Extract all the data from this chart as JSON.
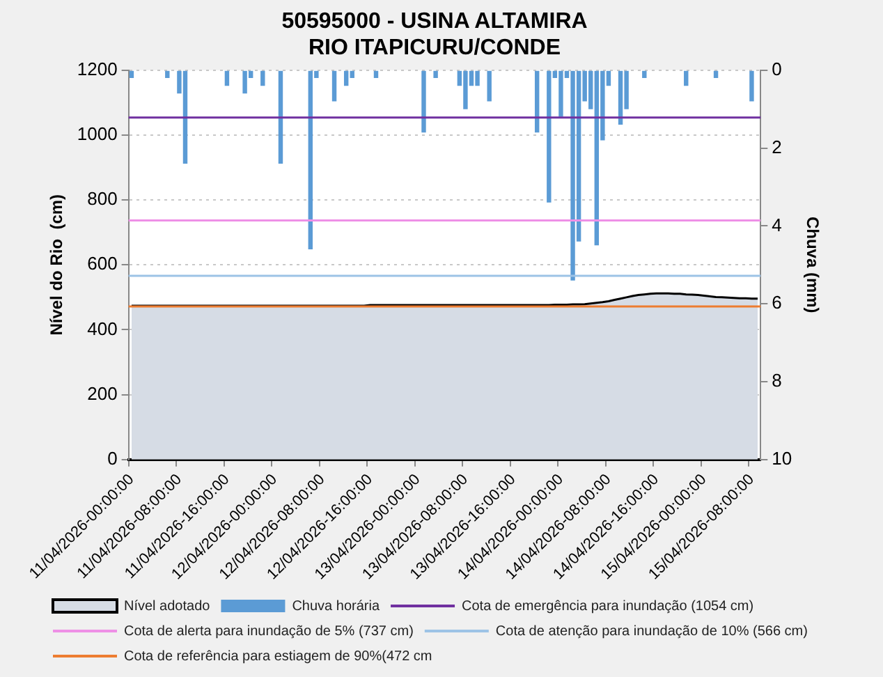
{
  "chart_data": {
    "type": "bar",
    "title": "50595000 - USINA ALTAMIRA",
    "subtitle": "RIO ITAPICURU/CONDE",
    "ylabel": "Nível do Rio  (cm)",
    "y2label": "Chuva (mm)",
    "categories": [
      "11/04/2026-00:00:00",
      null,
      null,
      null,
      null,
      null,
      null,
      null,
      "11/04/2026-08:00:00",
      null,
      null,
      null,
      null,
      null,
      null,
      null,
      "11/04/2026-16:00:00",
      null,
      null,
      null,
      null,
      null,
      null,
      null,
      "12/04/2026-00:00:00",
      null,
      null,
      null,
      null,
      null,
      null,
      null,
      "12/04/2026-08:00:00",
      null,
      null,
      null,
      null,
      null,
      null,
      null,
      "12/04/2026-16:00:00",
      null,
      null,
      null,
      null,
      null,
      null,
      null,
      "13/04/2026-00:00:00",
      null,
      null,
      null,
      null,
      null,
      null,
      null,
      "13/04/2026-08:00:00",
      null,
      null,
      null,
      null,
      null,
      null,
      null,
      "13/04/2026-16:00:00",
      null,
      null,
      null,
      null,
      null,
      null,
      null,
      "14/04/2026-00:00:00",
      null,
      null,
      null,
      null,
      null,
      null,
      null,
      "14/04/2026-08:00:00",
      null,
      null,
      null,
      null,
      null,
      null,
      null,
      "14/04/2026-16:00:00",
      null,
      null,
      null,
      null,
      null,
      null,
      null,
      "15/04/2026-00:00:00",
      null,
      null,
      null,
      null,
      null,
      null,
      null,
      "15/04/2026-08:00:00",
      null
    ],
    "series": [
      {
        "name": "Nível adotado",
        "type": "area",
        "color": "#d6dce5",
        "values": [
          474,
          474,
          474,
          474,
          474,
          474,
          474,
          474,
          474,
          474,
          474,
          474,
          474,
          474,
          474,
          474,
          474,
          474,
          474,
          474,
          474,
          474,
          474,
          474,
          474,
          474,
          474,
          474,
          474,
          474,
          474,
          474,
          474,
          474,
          474,
          474,
          474,
          474,
          474,
          474,
          476,
          476,
          476,
          476,
          476,
          476,
          476,
          476,
          476,
          476,
          476,
          476,
          476,
          476,
          476,
          476,
          476,
          476,
          476,
          476,
          476,
          476,
          476,
          476,
          476,
          476,
          476,
          476,
          476,
          476,
          476,
          477,
          477,
          477,
          478,
          478,
          479,
          481,
          483,
          485,
          488,
          492,
          496,
          500,
          504,
          507,
          509,
          511,
          512,
          512,
          512,
          511,
          511,
          509,
          508,
          507,
          505,
          503,
          501,
          500,
          499,
          498,
          497,
          497,
          496,
          496
        ]
      },
      {
        "name": "Chuva horária",
        "axis": "y2",
        "color": "#5b9bd5",
        "values": [
          0.2,
          0,
          0,
          0,
          0,
          0,
          0.2,
          0,
          0.6,
          2.4,
          0,
          0,
          0,
          0,
          0,
          0,
          0.4,
          0,
          0,
          0.6,
          0.2,
          0,
          0.4,
          0,
          0,
          2.4,
          0,
          0,
          0,
          0,
          4.6,
          0.2,
          0,
          0,
          0.8,
          0,
          0.4,
          0.2,
          0,
          0,
          0,
          0.2,
          0,
          0,
          0,
          0,
          0,
          0,
          0,
          1.6,
          0,
          0.2,
          0,
          0,
          0,
          0.4,
          1.0,
          0.4,
          0.4,
          0,
          0.8,
          0,
          0,
          0,
          0,
          0,
          0,
          0,
          1.6,
          0,
          3.4,
          0.2,
          1.2,
          0.2,
          5.4,
          4.4,
          0.8,
          1.0,
          4.5,
          1.8,
          0.4,
          0,
          1.4,
          1.0,
          0,
          0,
          0.2,
          0,
          0,
          0,
          0,
          0,
          0,
          0.4,
          0,
          0,
          0,
          0,
          0.2,
          0,
          0,
          0,
          0,
          0,
          0.8,
          0
        ]
      }
    ],
    "ref_lines": [
      {
        "axis": "y",
        "value": 1054,
        "label": "Cota de emergência para inundação (1054 cm)",
        "color": "#7030a0"
      },
      {
        "axis": "y",
        "value": 737,
        "label": "Cota de alerta para inundação de 5% (737 cm)",
        "color": "#ee90e6"
      },
      {
        "axis": "y",
        "value": 566,
        "label": "Cota de atenção para inundação de 10% (566 cm)",
        "color": "#9dc3e6"
      },
      {
        "axis": "y",
        "value": 472,
        "label": "Cota de referência para estiagem de 90%(472 cm",
        "color": "#ed7d31"
      }
    ],
    "ylim": [
      0,
      1200
    ],
    "yticks": [
      0,
      200,
      400,
      600,
      800,
      1000,
      1200
    ],
    "y2lim": [
      10,
      0
    ],
    "y2ticks": [
      0,
      2,
      4,
      6,
      8,
      10
    ],
    "grid": "y",
    "legend": "bottom"
  }
}
